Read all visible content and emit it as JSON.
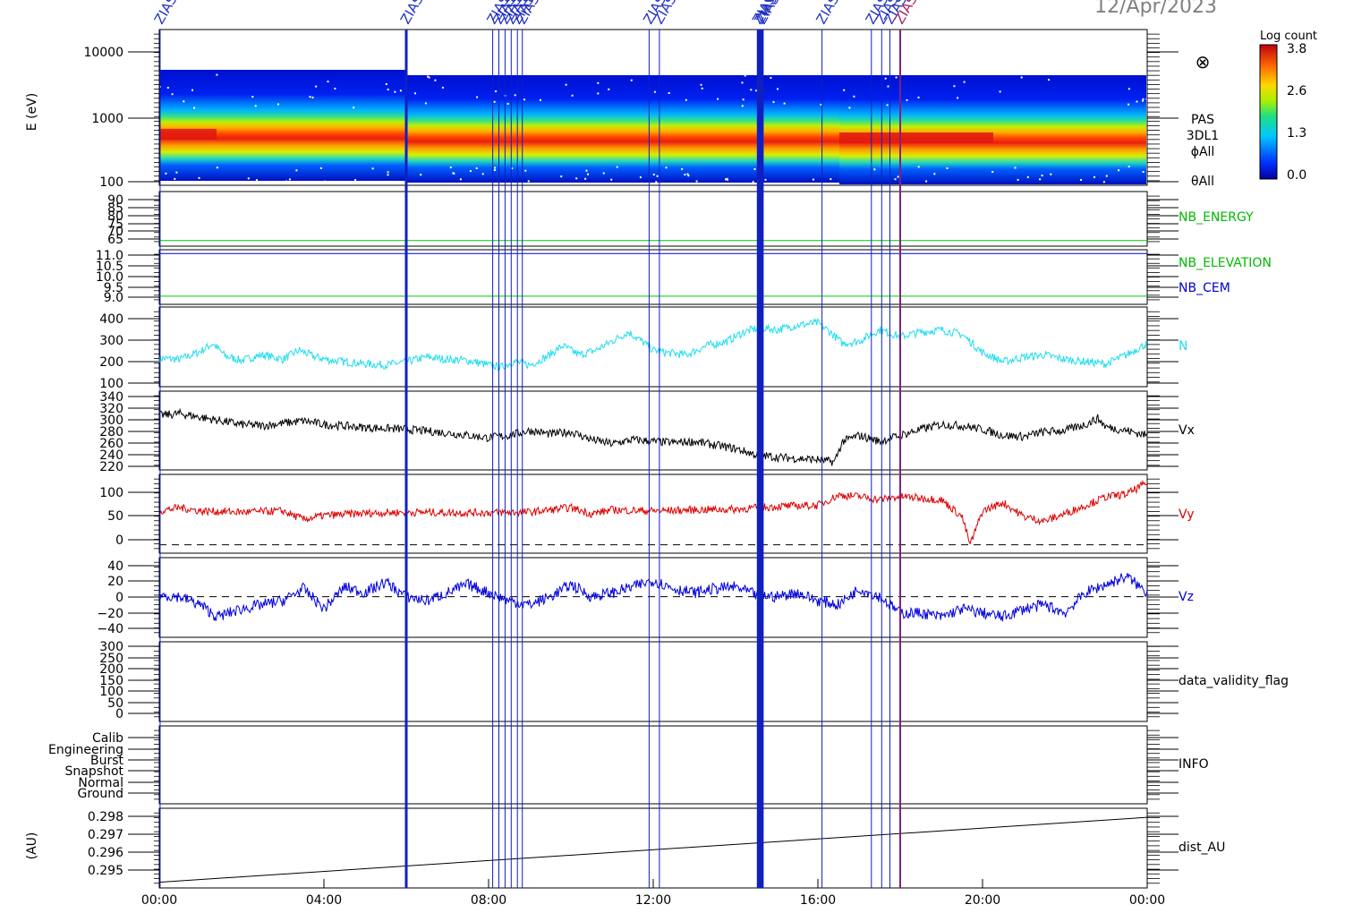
{
  "header": {
    "date": "12/Apr/2023"
  },
  "colorbar": {
    "title": "Log count",
    "ticks": [
      "3.8",
      "2.6",
      "1.3",
      "0.0"
    ]
  },
  "event_marker_label": "ZIAS",
  "x_ticks": [
    "00:00",
    "04:00",
    "08:00",
    "12:00",
    "16:00",
    "20:00",
    "00:00"
  ],
  "panels": {
    "spectrogram": {
      "ylabel": "E (eV)",
      "yticks": [
        "10000",
        "1000",
        "100"
      ],
      "labels": [
        "PAS",
        "3DL1",
        "ϕAll",
        "θAll"
      ],
      "symbol": "⊗"
    },
    "nb_energy": {
      "yticks": [
        "90",
        "85",
        "80",
        "75",
        "70",
        "65"
      ],
      "label": "NB_ENERGY"
    },
    "nb_elevation": {
      "yticks": [
        "11.0",
        "10.5",
        "10.0",
        "9.5",
        "9.0"
      ],
      "labels": [
        "NB_ELEVATION",
        "NB_CEM"
      ]
    },
    "density": {
      "yticks": [
        "400",
        "300",
        "200",
        "100"
      ],
      "label": "N"
    },
    "vx": {
      "yticks": [
        "340",
        "320",
        "300",
        "280",
        "260",
        "240",
        "220"
      ],
      "label": "Vx"
    },
    "vy": {
      "yticks": [
        "100",
        "50",
        "0"
      ],
      "label": "Vy"
    },
    "vz": {
      "yticks": [
        "40",
        "20",
        "0",
        "−20",
        "−40"
      ],
      "label": "Vz"
    },
    "validity": {
      "yticks": [
        "300",
        "250",
        "200",
        "150",
        "100",
        "50",
        "0"
      ],
      "label": "data_validity_flag"
    },
    "info": {
      "yticks": [
        "Calib",
        "Engineering",
        "Burst",
        "Snapshot",
        "Normal",
        "Ground"
      ],
      "label": "INFO"
    },
    "dist": {
      "ylabel": "(AU)",
      "yticks": [
        "0.298",
        "0.297",
        "0.296",
        "0.295"
      ],
      "label": "dist_AU"
    }
  },
  "chart_data": [
    {
      "type": "heatmap",
      "title": "PAS 3DL1",
      "xlabel": "",
      "ylabel": "E (eV)",
      "x": [
        "00:00",
        "04:00",
        "08:00",
        "12:00",
        "16:00",
        "20:00",
        "00:00"
      ],
      "ylim": [
        100,
        12000
      ],
      "y_scale": "log",
      "color_scale": "Log count",
      "clim": [
        0.0,
        3.8
      ],
      "peak_energy_eV": {
        "00:00": 550,
        "06:00": 480,
        "12:00": 420,
        "16:30": 560,
        "20:00": 480,
        "24:00": 520
      }
    },
    {
      "type": "line",
      "ylabel": "NB_ENERGY",
      "ylim": [
        63,
        92
      ],
      "series": [
        {
          "name": "NB_ENERGY",
          "color": "#00cc00",
          "x": [
            0,
            24
          ],
          "values": [
            66,
            66
          ]
        }
      ]
    },
    {
      "type": "line",
      "ylim": [
        8.9,
        11.1
      ],
      "series": [
        {
          "name": "NB_ELEVATION",
          "color": "#00cc00",
          "x": [
            0,
            24
          ],
          "values": [
            9.0,
            9.0
          ]
        },
        {
          "name": "NB_CEM",
          "color": "#0000cc",
          "x": [
            0,
            24
          ],
          "values": [
            11.0,
            11.0
          ]
        }
      ]
    },
    {
      "type": "line",
      "ylabel": "N",
      "ylim": [
        80,
        430
      ],
      "series": [
        {
          "name": "N",
          "color": "#22ddee",
          "x": [
            0,
            0.5,
            1,
            1.3,
            1.6,
            2,
            2.5,
            3,
            3.4,
            3.8,
            4.2,
            5,
            5.5,
            6,
            6.5,
            7,
            7.5,
            8,
            8.3,
            8.6,
            9,
            9.4,
            9.8,
            10.2,
            10.6,
            11,
            11.4,
            11.8,
            12,
            12.3,
            12.8,
            13.3,
            13.8,
            14.2,
            14.6,
            15,
            15.5,
            16,
            16.3,
            16.6,
            17,
            17.5,
            18,
            18.5,
            19,
            19.5,
            20,
            20.5,
            21,
            21.5,
            22,
            22.5,
            23,
            23.5,
            24
          ],
          "values": [
            205,
            200,
            235,
            270,
            215,
            195,
            220,
            200,
            240,
            210,
            195,
            180,
            175,
            190,
            210,
            200,
            195,
            175,
            165,
            190,
            175,
            210,
            260,
            220,
            240,
            280,
            320,
            270,
            240,
            230,
            220,
            260,
            280,
            320,
            340,
            330,
            350,
            360,
            320,
            270,
            280,
            330,
            300,
            320,
            330,
            310,
            230,
            190,
            210,
            220,
            200,
            190,
            180,
            220,
            270
          ]
        }
      ]
    },
    {
      "type": "line",
      "ylabel": "Vx",
      "ylim": [
        215,
        345
      ],
      "series": [
        {
          "name": "Vx",
          "color": "#000000",
          "x": [
            0,
            0.5,
            1,
            1.5,
            2,
            2.5,
            3,
            3.5,
            4,
            5,
            6,
            7,
            8,
            8.5,
            9,
            9.5,
            10,
            10.5,
            11,
            11.5,
            12,
            12.5,
            13,
            13.5,
            14,
            14.5,
            15,
            15.5,
            16,
            16.4,
            16.6,
            17,
            17.5,
            18,
            18.5,
            19,
            19.5,
            20,
            20.5,
            21,
            21.5,
            22,
            22.5,
            22.8,
            23,
            23.5,
            24
          ],
          "values": [
            305,
            308,
            302,
            296,
            290,
            288,
            292,
            296,
            290,
            285,
            282,
            276,
            268,
            272,
            280,
            274,
            278,
            265,
            258,
            265,
            262,
            260,
            262,
            256,
            250,
            240,
            236,
            234,
            232,
            228,
            262,
            272,
            262,
            272,
            282,
            290,
            288,
            282,
            272,
            270,
            278,
            280,
            290,
            300,
            286,
            280,
            272
          ]
        }
      ]
    },
    {
      "type": "line",
      "ylabel": "Vy",
      "ylim": [
        -15,
        125
      ],
      "series": [
        {
          "name": "Vy",
          "color": "#dd0000",
          "x": [
            0,
            0.5,
            1,
            2,
            3,
            3.5,
            4,
            5,
            6,
            7,
            8,
            9,
            10,
            10.5,
            11,
            12,
            13,
            14,
            15,
            16,
            16.5,
            17,
            17.5,
            18,
            19,
            19.5,
            19.7,
            20,
            20.5,
            21,
            21.5,
            22,
            22.5,
            23,
            23.5,
            24
          ],
          "values": [
            60,
            66,
            60,
            58,
            60,
            45,
            52,
            56,
            58,
            57,
            57,
            58,
            66,
            55,
            62,
            60,
            62,
            63,
            68,
            70,
            88,
            86,
            80,
            86,
            80,
            50,
            0,
            60,
            75,
            50,
            42,
            55,
            70,
            85,
            90,
            110
          ]
        }
      ]
    },
    {
      "type": "line",
      "ylabel": "Vz",
      "ylim": [
        -50,
        48
      ],
      "series": [
        {
          "name": "Vz",
          "color": "#0000dd",
          "x": [
            0,
            0.5,
            1,
            1.4,
            2,
            2.5,
            3,
            3.5,
            4,
            4.5,
            5,
            5.5,
            6,
            6.5,
            7,
            7.5,
            8,
            8.5,
            9,
            9.5,
            10,
            10.5,
            11,
            11.5,
            12,
            12.5,
            13,
            13.5,
            14,
            14.5,
            15,
            15.5,
            16,
            16.5,
            17,
            17.5,
            18,
            18.5,
            19,
            19.5,
            20,
            20.5,
            21,
            21.5,
            22,
            22.5,
            23,
            23.5,
            24
          ],
          "values": [
            2,
            0,
            -10,
            -25,
            -15,
            -10,
            -5,
            10,
            -15,
            12,
            5,
            18,
            0,
            -5,
            5,
            15,
            5,
            -5,
            -10,
            0,
            15,
            0,
            5,
            12,
            20,
            10,
            5,
            10,
            12,
            2,
            0,
            5,
            -5,
            -10,
            10,
            0,
            -20,
            -20,
            -25,
            -15,
            -20,
            -25,
            -15,
            -10,
            -20,
            5,
            15,
            25,
            5
          ]
        }
      ]
    },
    {
      "type": "line",
      "ylabel": "(AU)",
      "ylim": [
        0.2945,
        0.2985
      ],
      "series": [
        {
          "name": "dist_AU",
          "color": "#000000",
          "x": [
            0,
            24
          ],
          "values": [
            0.29465,
            0.29803
          ]
        }
      ]
    }
  ]
}
